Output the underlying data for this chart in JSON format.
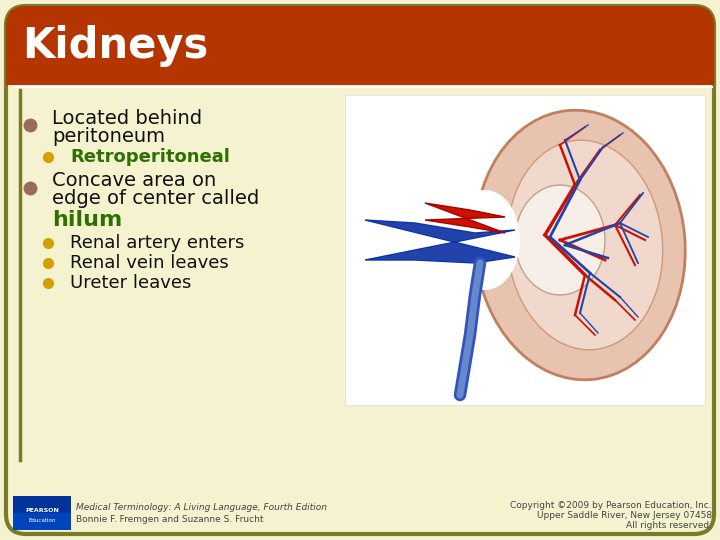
{
  "title": "Kidneys",
  "title_color": "#FFFFFF",
  "title_bg_color": "#B53500",
  "slide_bg_color": "#F5F2D0",
  "border_color": "#7A7A2A",
  "bullet_color_dark": "#9B6B5A",
  "bullet_color_gold": "#D4A000",
  "sub_bullet1_text": "Retroperitoneal",
  "sub_bullet1_color": "#2E7000",
  "bullet2_bold_color": "#2E7000",
  "sub_bullets2": [
    "Renal artery enters",
    "Renal vein leaves",
    "Ureter leaves"
  ],
  "footer_left_line1": "Medical Terminology: A Living Language, Fourth Edition",
  "footer_left_line2": "Bonnie F. Fremgen and Suzanne S. Frucht",
  "footer_right_line1": "Copyright ©2009 by Pearson Education, Inc.",
  "footer_right_line2": "Upper Saddle River, New Jersey 07458",
  "footer_right_line3": "All rights reserved.",
  "footer_color": "#444444",
  "main_text_color": "#111111",
  "kidney_bg": "#FFFFFF",
  "kidney_outer": "#E8C4B0",
  "kidney_outer_edge": "#C08060",
  "kidney_inner": "#F0D8CC",
  "kidney_pelvis": "#F5EDE8",
  "artery_color": "#CC1100",
  "vein_color": "#2244AA",
  "ureter_color": "#3355BB"
}
